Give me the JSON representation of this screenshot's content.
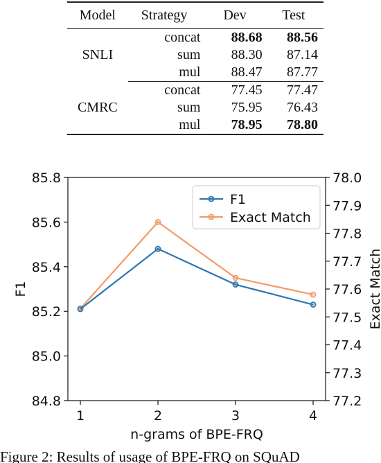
{
  "table": {
    "headers": [
      "Model",
      "Strategy",
      "Dev",
      "Test"
    ],
    "groups": [
      {
        "model": "SNLI",
        "rows": [
          {
            "strategy": "concat",
            "dev": "88.68",
            "test": "88.56",
            "bold": true
          },
          {
            "strategy": "sum",
            "dev": "88.30",
            "test": "87.14",
            "bold": false
          },
          {
            "strategy": "mul",
            "dev": "88.47",
            "test": "87.77",
            "bold": false
          }
        ]
      },
      {
        "model": "CMRC",
        "rows": [
          {
            "strategy": "concat",
            "dev": "77.45",
            "test": "77.47",
            "bold": false
          },
          {
            "strategy": "sum",
            "dev": "75.95",
            "test": "76.43",
            "bold": false
          },
          {
            "strategy": "mul",
            "dev": "78.95",
            "test": "78.80",
            "bold": true
          }
        ]
      }
    ]
  },
  "chart_data": {
    "type": "line",
    "x": [
      1,
      2,
      3,
      4
    ],
    "xlabel": "n-grams of BPE-FRQ",
    "ylabel": "F1",
    "ylabel_right": "Exact Match",
    "ylim": [
      84.8,
      85.8
    ],
    "ylim_right": [
      77.2,
      78.0
    ],
    "yticks": [
      "84.8",
      "85.0",
      "85.2",
      "85.4",
      "85.6",
      "85.8"
    ],
    "yticks_right": [
      "77.2",
      "77.3",
      "77.4",
      "77.5",
      "77.6",
      "77.7",
      "77.8",
      "77.9",
      "78.0"
    ],
    "xticks": [
      "1",
      "2",
      "3",
      "4"
    ],
    "legend_position": "top-right",
    "series": [
      {
        "name": "F1",
        "axis": "left",
        "color": "#2e75b2",
        "values": [
          85.21,
          85.48,
          85.32,
          85.23
        ]
      },
      {
        "name": "Exact Match",
        "axis": "right",
        "color": "#f39a68",
        "values": [
          77.53,
          77.84,
          77.64,
          77.58
        ]
      }
    ]
  },
  "caption": "Figure 2: Results of usage of BPE-FRQ on SQuAD"
}
